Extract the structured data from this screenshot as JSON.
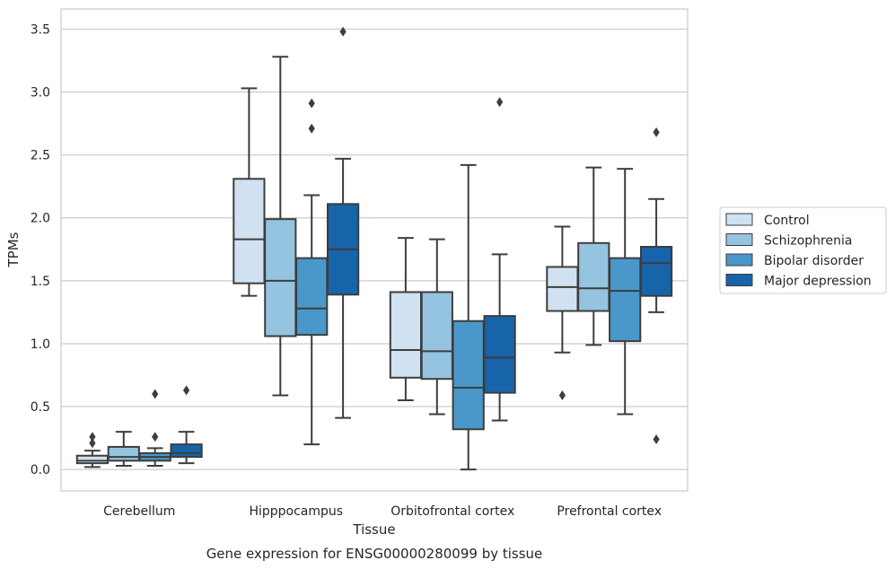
{
  "chart_data": {
    "type": "boxplot",
    "title": "",
    "caption": "Gene expression for ENSG00000280099 by tissue",
    "xlabel": "Tissue",
    "ylabel": "TPMs",
    "ylim": [
      -0.17,
      3.66
    ],
    "yticks": [
      0.0,
      0.5,
      1.0,
      1.5,
      2.0,
      2.5,
      3.0,
      3.5
    ],
    "ytick_labels": [
      "0.0",
      "0.5",
      "1.0",
      "1.5",
      "2.0",
      "2.5",
      "3.0",
      "3.5"
    ],
    "grid": "horizontal",
    "legend_position": "right",
    "categories": [
      "Cerebellum",
      "Hipppocampus",
      "Orbitofrontal cortex",
      "Prefrontal cortex"
    ],
    "series": [
      {
        "name": "Control",
        "color": "#d0e1f2",
        "boxes": [
          {
            "whisker_low": 0.02,
            "q1": 0.05,
            "median": 0.07,
            "q3": 0.11,
            "whisker_high": 0.15,
            "outliers": [
              0.21,
              0.26
            ]
          },
          {
            "whisker_low": 1.38,
            "q1": 1.48,
            "median": 1.83,
            "q3": 2.31,
            "whisker_high": 3.03,
            "outliers": []
          },
          {
            "whisker_low": 0.55,
            "q1": 0.73,
            "median": 0.95,
            "q3": 1.41,
            "whisker_high": 1.84,
            "outliers": []
          },
          {
            "whisker_low": 0.93,
            "q1": 1.26,
            "median": 1.45,
            "q3": 1.61,
            "whisker_high": 1.93,
            "outliers": [
              0.59
            ]
          }
        ]
      },
      {
        "name": "Schizophrenia",
        "color": "#94c4df",
        "boxes": [
          {
            "whisker_low": 0.03,
            "q1": 0.07,
            "median": 0.1,
            "q3": 0.18,
            "whisker_high": 0.3,
            "outliers": []
          },
          {
            "whisker_low": 0.59,
            "q1": 1.06,
            "median": 1.5,
            "q3": 1.99,
            "whisker_high": 3.28,
            "outliers": []
          },
          {
            "whisker_low": 0.44,
            "q1": 0.72,
            "median": 0.94,
            "q3": 1.41,
            "whisker_high": 1.83,
            "outliers": []
          },
          {
            "whisker_low": 0.99,
            "q1": 1.26,
            "median": 1.44,
            "q3": 1.8,
            "whisker_high": 2.4,
            "outliers": []
          }
        ]
      },
      {
        "name": "Bipolar disorder",
        "color": "#4a98c9",
        "boxes": [
          {
            "whisker_low": 0.03,
            "q1": 0.07,
            "median": 0.1,
            "q3": 0.13,
            "whisker_high": 0.17,
            "outliers": [
              0.26,
              0.6
            ]
          },
          {
            "whisker_low": 0.2,
            "q1": 1.07,
            "median": 1.28,
            "q3": 1.68,
            "whisker_high": 2.18,
            "outliers": [
              2.71,
              2.91
            ]
          },
          {
            "whisker_low": 0.0,
            "q1": 0.32,
            "median": 0.65,
            "q3": 1.18,
            "whisker_high": 2.42,
            "outliers": []
          },
          {
            "whisker_low": 0.44,
            "q1": 1.02,
            "median": 1.42,
            "q3": 1.68,
            "whisker_high": 2.39,
            "outliers": []
          }
        ]
      },
      {
        "name": "Major depression",
        "color": "#1764ab",
        "boxes": [
          {
            "whisker_low": 0.05,
            "q1": 0.1,
            "median": 0.13,
            "q3": 0.2,
            "whisker_high": 0.3,
            "outliers": [
              0.63
            ]
          },
          {
            "whisker_low": 0.41,
            "q1": 1.39,
            "median": 1.75,
            "q3": 2.11,
            "whisker_high": 2.47,
            "outliers": [
              3.48
            ]
          },
          {
            "whisker_low": 0.39,
            "q1": 0.61,
            "median": 0.89,
            "q3": 1.22,
            "whisker_high": 1.71,
            "outliers": [
              2.92
            ]
          },
          {
            "whisker_low": 1.25,
            "q1": 1.38,
            "median": 1.64,
            "q3": 1.77,
            "whisker_high": 2.15,
            "outliers": [
              0.24,
              2.68
            ]
          }
        ]
      }
    ]
  }
}
